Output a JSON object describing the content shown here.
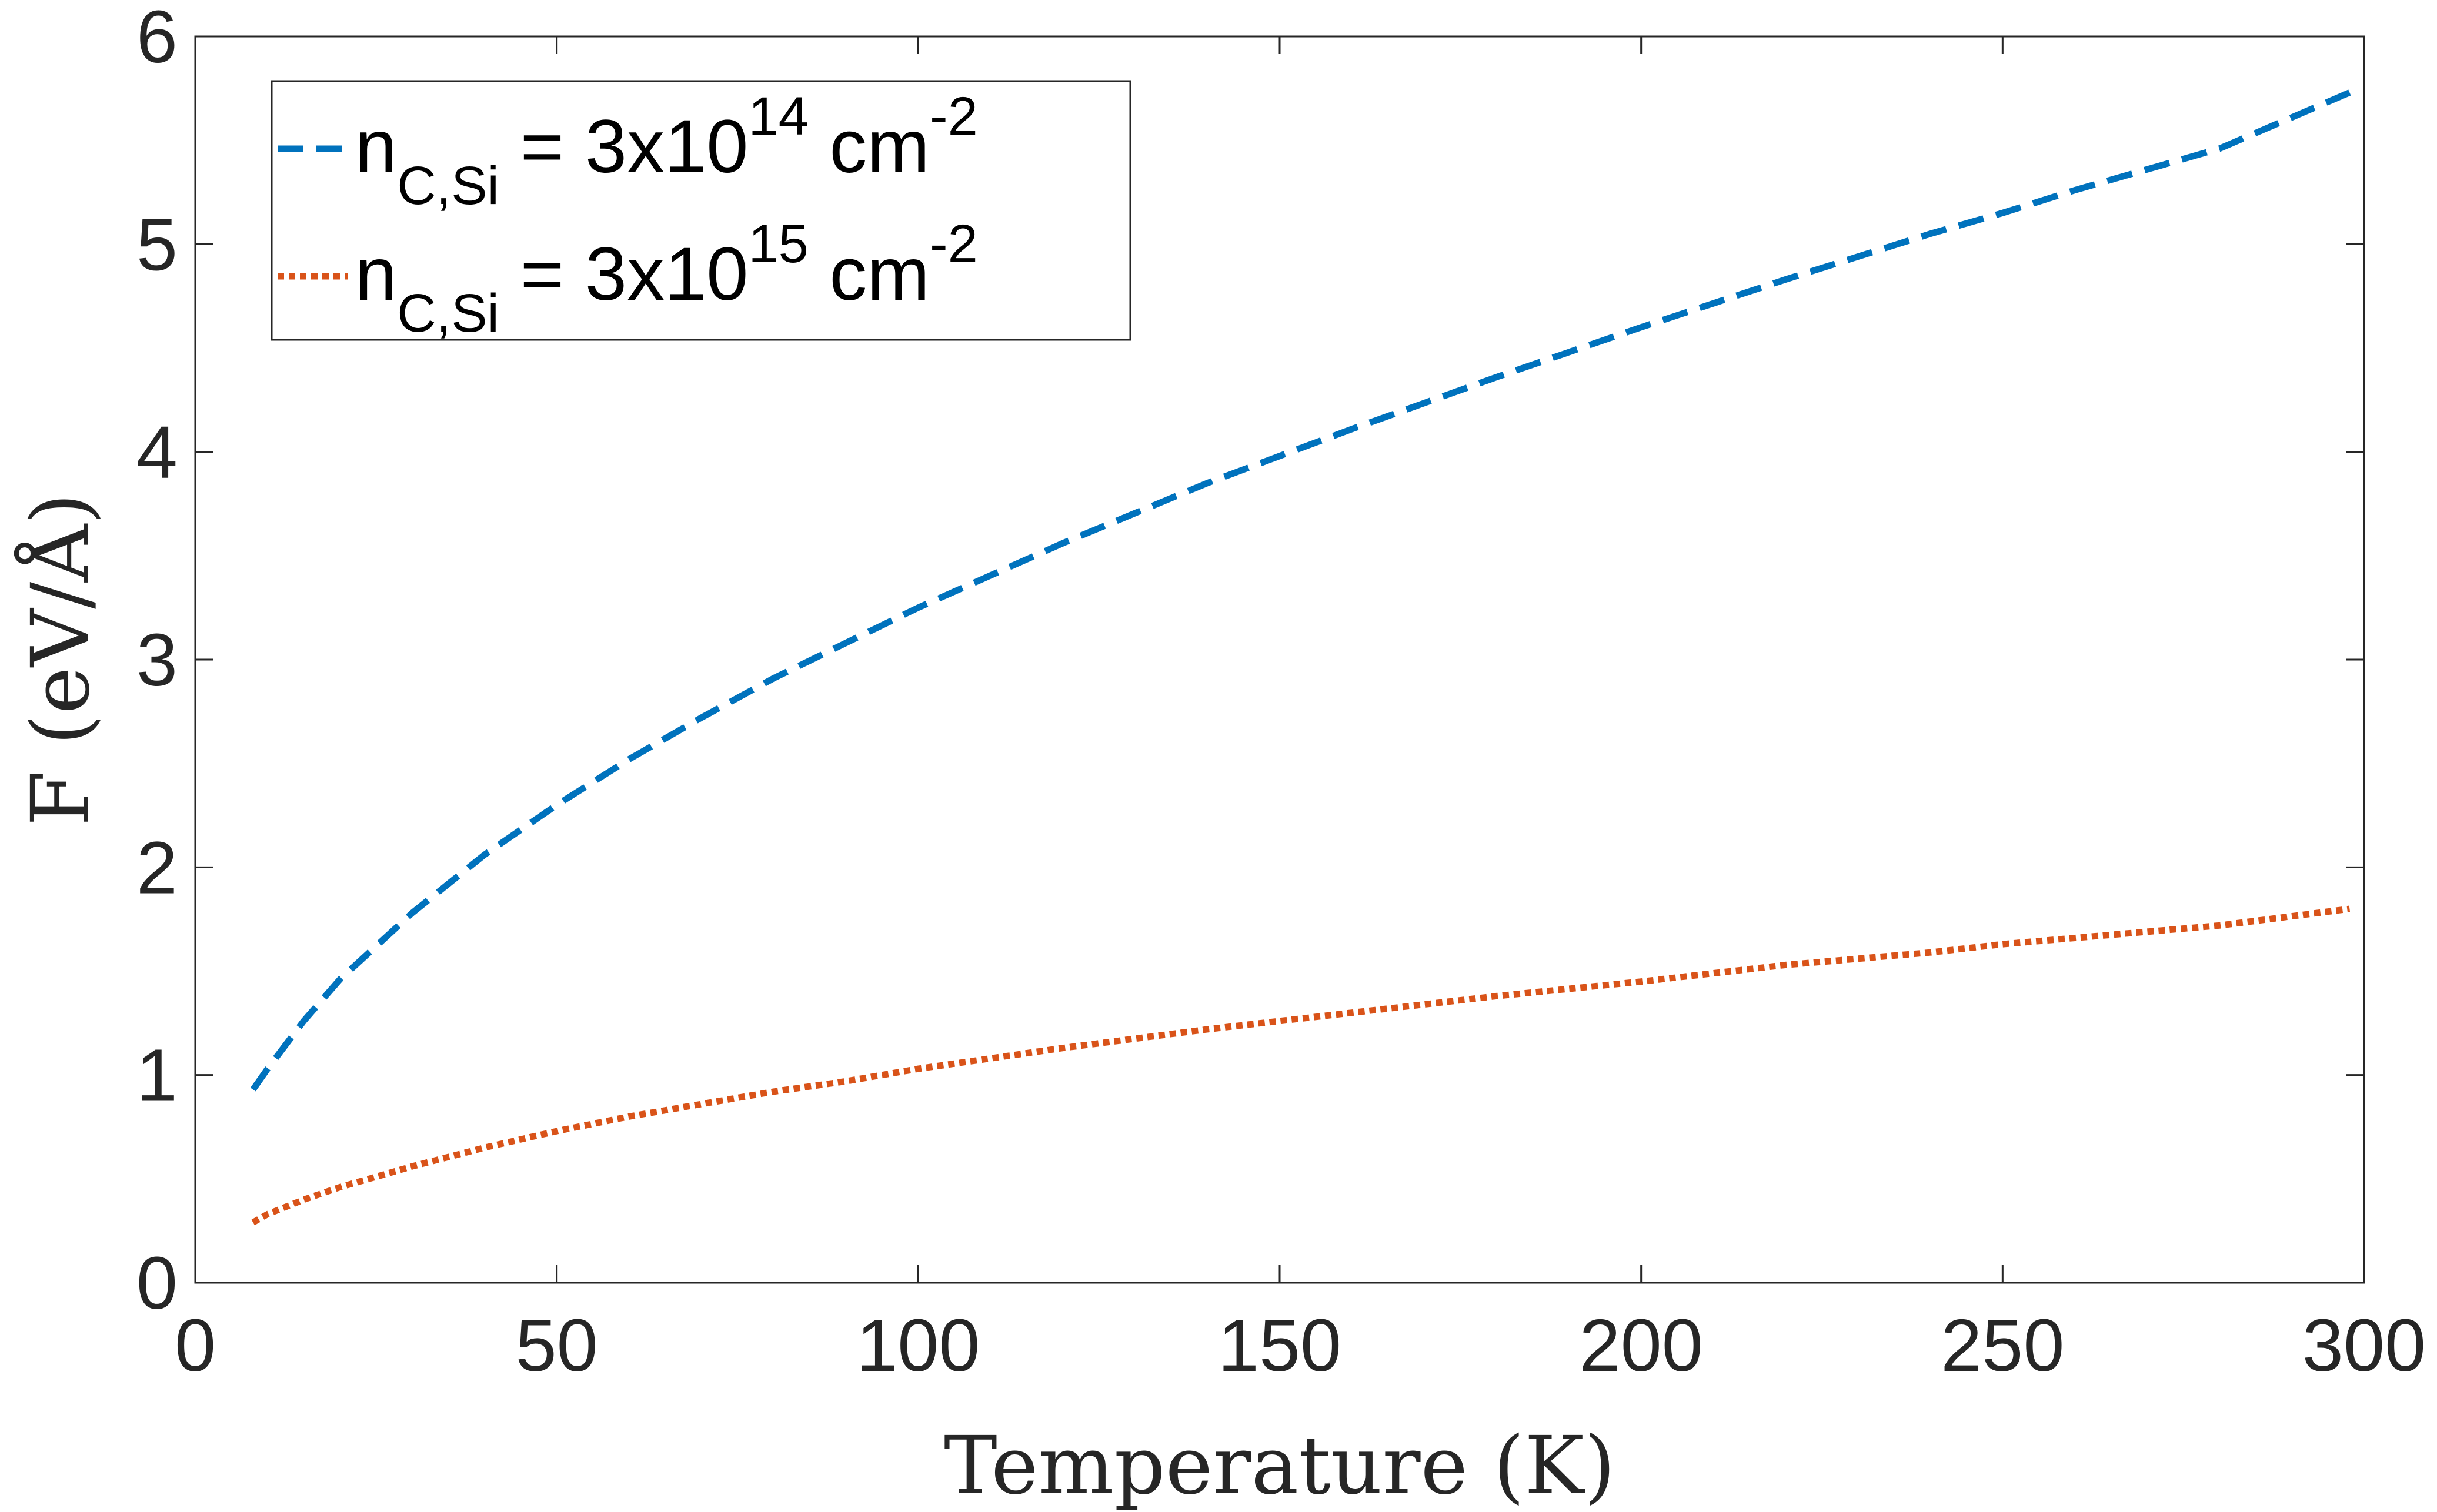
{
  "chart_data": {
    "type": "line",
    "xlabel": "Temperature (K)",
    "ylabel": "F (eV/Å)",
    "xlim": [
      0,
      300
    ],
    "ylim": [
      0,
      6
    ],
    "xticks": [
      0,
      50,
      100,
      150,
      200,
      250,
      300
    ],
    "yticks": [
      0,
      1,
      2,
      3,
      4,
      5,
      6
    ],
    "grid": false,
    "legend_position": "top-left",
    "series": [
      {
        "legend": {
          "base": "n",
          "sub": "C,Si",
          "value": " = 3x10",
          "exp": "14",
          "unit": " cm",
          "unit_exp": "-2"
        },
        "color": "#0072BD",
        "style": "dashed",
        "x": [
          8,
          10,
          15,
          20,
          30,
          40,
          50,
          60,
          70,
          80,
          90,
          100,
          120,
          140,
          150,
          160,
          180,
          200,
          220,
          240,
          250,
          260,
          280,
          298
        ],
        "y": [
          0.93,
          1.03,
          1.26,
          1.46,
          1.78,
          2.06,
          2.3,
          2.52,
          2.72,
          2.91,
          3.08,
          3.25,
          3.56,
          3.85,
          3.98,
          4.11,
          4.36,
          4.6,
          4.83,
          5.05,
          5.15,
          5.26,
          5.46,
          5.73
        ]
      },
      {
        "legend": {
          "base": "n",
          "sub": "C,Si",
          "value": " = 3x10",
          "exp": "15",
          "unit": " cm",
          "unit_exp": "-2"
        },
        "color": "#D95319",
        "style": "dotted",
        "x": [
          8,
          10,
          15,
          20,
          30,
          40,
          50,
          60,
          70,
          80,
          90,
          100,
          120,
          140,
          150,
          160,
          180,
          200,
          220,
          240,
          250,
          260,
          280,
          298
        ],
        "y": [
          0.29,
          0.33,
          0.4,
          0.46,
          0.56,
          0.65,
          0.73,
          0.8,
          0.86,
          0.92,
          0.97,
          1.03,
          1.13,
          1.22,
          1.26,
          1.3,
          1.38,
          1.45,
          1.53,
          1.59,
          1.63,
          1.66,
          1.72,
          1.8
        ]
      }
    ]
  }
}
